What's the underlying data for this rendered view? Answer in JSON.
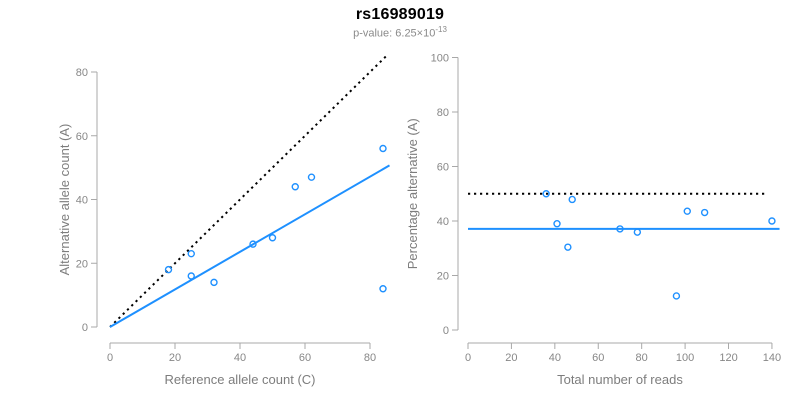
{
  "header": {
    "title": "rs16989019",
    "subtitle_prefix": "p-value: 6.25×10",
    "subtitle_exponent": "-13"
  },
  "colors": {
    "accent_blue": "#1E90FF",
    "identity_black": "#000000",
    "axis_text": "#878787",
    "axis_line": "#a8a8a8"
  },
  "chart_data": [
    {
      "id": "allele-count-scatter",
      "type": "scatter",
      "title": "",
      "xlabel": "Reference allele count (C)",
      "ylabel": "Alternative allele count (A)",
      "xlim": [
        0,
        87
      ],
      "ylim": [
        0,
        87
      ],
      "xticks": [
        0,
        20,
        40,
        60,
        80
      ],
      "yticks": [
        0,
        20,
        40,
        60,
        80
      ],
      "grid": false,
      "points": [
        {
          "x": 18,
          "y": 18
        },
        {
          "x": 25,
          "y": 23
        },
        {
          "x": 25,
          "y": 16
        },
        {
          "x": 32,
          "y": 14
        },
        {
          "x": 44,
          "y": 26
        },
        {
          "x": 50,
          "y": 28
        },
        {
          "x": 57,
          "y": 44
        },
        {
          "x": 62,
          "y": 47
        },
        {
          "x": 84,
          "y": 12
        },
        {
          "x": 84,
          "y": 56
        }
      ],
      "lines": [
        {
          "name": "identity-line",
          "style": "dotted",
          "color": "#000000",
          "x1": 0,
          "y1": 0,
          "x2": 85.3,
          "y2": 85.3
        },
        {
          "name": "fit-line",
          "style": "solid",
          "color": "#1E90FF",
          "x1": 0,
          "y1": 0,
          "x2": 86,
          "y2": 50.7
        }
      ]
    },
    {
      "id": "percentage-reads-scatter",
      "type": "scatter",
      "title": "",
      "xlabel": "Total number of reads",
      "ylabel": "Percentage alternative (A)",
      "xlim": [
        0,
        145
      ],
      "ylim": [
        0,
        100
      ],
      "xticks": [
        0,
        20,
        40,
        60,
        80,
        100,
        120,
        140
      ],
      "yticks": [
        0,
        20,
        40,
        60,
        80,
        100
      ],
      "grid": false,
      "points": [
        {
          "x": 36,
          "y": 50.0
        },
        {
          "x": 48,
          "y": 47.9
        },
        {
          "x": 41,
          "y": 39.0
        },
        {
          "x": 46,
          "y": 30.4
        },
        {
          "x": 70,
          "y": 37.1
        },
        {
          "x": 78,
          "y": 35.9
        },
        {
          "x": 101,
          "y": 43.6
        },
        {
          "x": 109,
          "y": 43.1
        },
        {
          "x": 96,
          "y": 12.5
        },
        {
          "x": 140,
          "y": 40.0
        }
      ],
      "lines": [
        {
          "name": "fifty-percent-line",
          "style": "dotted",
          "color": "#000000",
          "x1": 0,
          "y1": 50,
          "x2": 137,
          "y2": 50
        },
        {
          "name": "mean-percentage-line",
          "style": "solid",
          "color": "#1E90FF",
          "x1": 0,
          "y1": 37.1,
          "x2": 143.5,
          "y2": 37.1
        }
      ]
    }
  ]
}
